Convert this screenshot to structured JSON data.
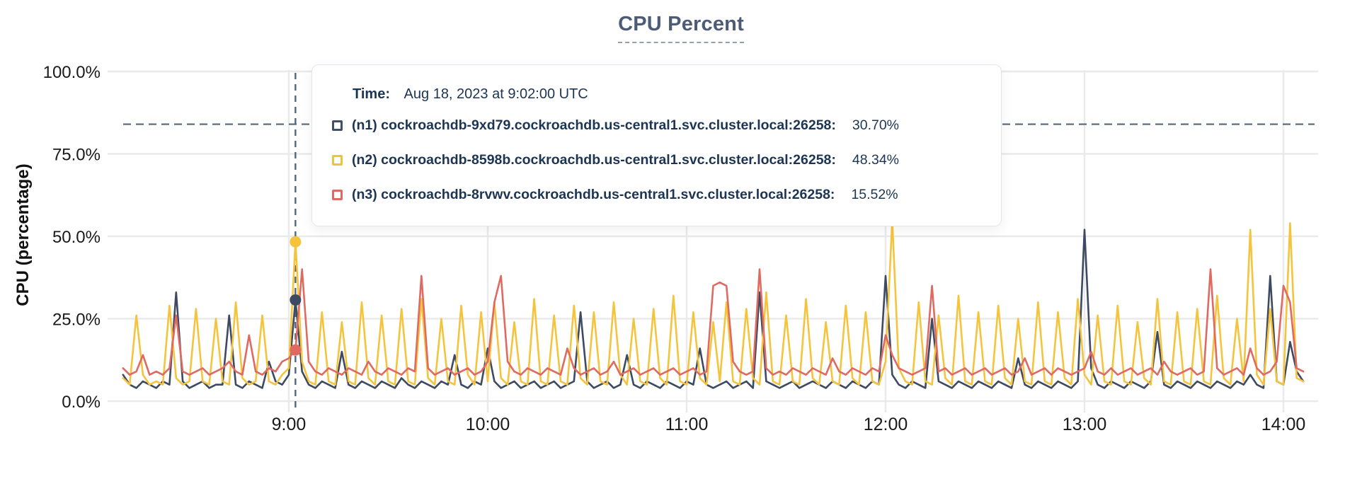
{
  "title": "CPU Percent",
  "y_axis_label": "CPU (percentage)",
  "tooltip": {
    "time_label": "Time:",
    "time_value": "Aug 18, 2023 at 9:02:00 UTC",
    "rows": [
      {
        "label": "(n1) cockroachdb-9xd79.cockroachdb.us-central1.svc.cluster.local:26258:",
        "value": "30.70%",
        "color": "#424f68"
      },
      {
        "label": "(n2) cockroachdb-8598b.cockroachdb.us-central1.svc.cluster.local:26258:",
        "value": "48.34%",
        "color": "#f0c33c"
      },
      {
        "label": "(n3) cockroachdb-8rvwv.cockroachdb.us-central1.svc.cluster.local:26258:",
        "value": "15.52%",
        "color": "#df6a62"
      }
    ]
  },
  "colors": {
    "accent_navy_text": "#1c3553",
    "title_slate": "#4d5c76",
    "gridline": "#eaeaea",
    "dashed_guides": "#51677b",
    "axis_text": "#1a1a1a",
    "series_n1": "#3d4a61",
    "series_n2": "#f5c43c",
    "series_n3": "#df6a62"
  },
  "chart_data": {
    "type": "line",
    "title": "CPU Percent",
    "xlabel": "",
    "ylabel": "CPU (percentage)",
    "ylim": [
      0,
      100
    ],
    "grid": true,
    "legend_position": "hover-tooltip",
    "y_tick_values": [
      0,
      25,
      50,
      75,
      100
    ],
    "y_tick_labels": [
      "0.0%",
      "25.0%",
      "50.0%",
      "75.0%",
      "100.0%"
    ],
    "x_tick_hours": [
      9,
      10,
      11,
      12,
      13,
      14
    ],
    "x_tick_labels": [
      "9:00",
      "10:00",
      "11:00",
      "12:00",
      "13:00",
      "14:00"
    ],
    "x_start_hour": 8.1667,
    "x_end_hour": 14.1,
    "x_minutes_per_point": 2,
    "threshold_pct": 84,
    "hover": {
      "x_hour": 9.0333,
      "time": "Aug 18, 2023 at 9:02:00 UTC",
      "values": [
        30.7,
        48.34,
        15.52
      ]
    },
    "series": [
      {
        "name": "(n1) cockroachdb-9xd79.cockroachdb.us-central1.svc.cluster.local:26258",
        "color": "#3d4a61",
        "values": [
          8,
          5,
          4,
          6,
          5,
          4,
          6,
          5,
          33,
          6,
          4,
          5,
          6,
          4,
          5,
          5,
          26,
          5,
          4,
          6,
          5,
          4,
          12,
          6,
          5,
          8,
          30.7,
          9,
          5,
          4,
          6,
          5,
          4,
          15,
          5,
          4,
          6,
          5,
          4,
          6,
          5,
          4,
          7,
          5,
          4,
          6,
          5,
          4,
          6,
          5,
          14,
          5,
          4,
          6,
          5,
          16,
          6,
          4,
          5,
          6,
          4,
          5,
          6,
          4,
          5,
          6,
          4,
          5,
          6,
          27,
          6,
          4,
          5,
          6,
          4,
          5,
          14,
          5,
          4,
          6,
          5,
          4,
          6,
          5,
          4,
          6,
          5,
          16,
          5,
          4,
          5,
          6,
          4,
          5,
          6,
          4,
          33,
          6,
          5,
          4,
          5,
          6,
          4,
          5,
          6,
          5,
          4,
          6,
          5,
          4,
          6,
          5,
          4,
          6,
          5,
          38,
          8,
          5,
          4,
          6,
          5,
          4,
          25,
          6,
          5,
          4,
          6,
          5,
          4,
          6,
          5,
          4,
          6,
          5,
          4,
          13,
          5,
          4,
          6,
          5,
          4,
          6,
          5,
          4,
          6,
          52,
          10,
          5,
          4,
          6,
          5,
          4,
          6,
          5,
          4,
          6,
          21,
          5,
          4,
          6,
          5,
          4,
          6,
          5,
          4,
          6,
          5,
          4,
          6,
          5,
          8,
          5,
          4,
          38,
          6,
          5,
          18,
          9,
          6
        ]
      },
      {
        "name": "(n2) cockroachdb-8598b.cockroachdb.us-central1.svc.cluster.local:26258",
        "color": "#f5c43c",
        "values": [
          7,
          5,
          26,
          8,
          5,
          6,
          5,
          29,
          7,
          5,
          6,
          28,
          6,
          5,
          25,
          6,
          5,
          30,
          7,
          5,
          6,
          26,
          6,
          5,
          8,
          10,
          48.34,
          12,
          6,
          5,
          27,
          6,
          5,
          24,
          6,
          5,
          30,
          7,
          5,
          26,
          6,
          5,
          28,
          6,
          5,
          31,
          7,
          5,
          25,
          6,
          5,
          29,
          8,
          5,
          27,
          6,
          30,
          7,
          5,
          24,
          6,
          5,
          31,
          6,
          5,
          26,
          6,
          5,
          29,
          7,
          5,
          27,
          6,
          5,
          30,
          8,
          5,
          25,
          6,
          5,
          28,
          7,
          5,
          32,
          6,
          5,
          27,
          7,
          5,
          24,
          6,
          30,
          6,
          5,
          28,
          7,
          5,
          33,
          6,
          5,
          26,
          6,
          5,
          31,
          7,
          5,
          24,
          6,
          5,
          29,
          7,
          5,
          27,
          6,
          5,
          12,
          55,
          10,
          6,
          5,
          30,
          6,
          5,
          26,
          7,
          5,
          32,
          6,
          5,
          27,
          6,
          5,
          29,
          7,
          5,
          25,
          6,
          5,
          30,
          6,
          5,
          27,
          7,
          5,
          31,
          8,
          5,
          26,
          6,
          5,
          29,
          6,
          5,
          24,
          7,
          5,
          31,
          6,
          5,
          27,
          6,
          5,
          28,
          6,
          5,
          32,
          7,
          5,
          25,
          6,
          52,
          8,
          5,
          28,
          6,
          5,
          54,
          7,
          6
        ]
      },
      {
        "name": "(n3) cockroachdb-8rvwv.cockroachdb.us-central1.svc.cluster.local:26258",
        "color": "#df6a62",
        "values": [
          10,
          8,
          9,
          14,
          8,
          9,
          8,
          10,
          26,
          9,
          8,
          9,
          10,
          8,
          9,
          10,
          12,
          9,
          8,
          20,
          9,
          8,
          10,
          9,
          12,
          13,
          15.52,
          40,
          12,
          9,
          8,
          10,
          9,
          8,
          10,
          9,
          8,
          12,
          9,
          8,
          10,
          9,
          8,
          10,
          9,
          38,
          10,
          8,
          9,
          10,
          8,
          9,
          10,
          8,
          9,
          12,
          30,
          38,
          12,
          9,
          8,
          10,
          9,
          8,
          10,
          9,
          8,
          16,
          10,
          8,
          9,
          10,
          8,
          9,
          12,
          8,
          9,
          10,
          8,
          9,
          10,
          8,
          9,
          10,
          8,
          9,
          10,
          8,
          9,
          35,
          36,
          35,
          12,
          9,
          8,
          9,
          40,
          10,
          8,
          9,
          8,
          10,
          9,
          8,
          10,
          9,
          8,
          13,
          9,
          8,
          10,
          9,
          8,
          10,
          9,
          20,
          14,
          10,
          9,
          8,
          9,
          10,
          35,
          9,
          10,
          8,
          9,
          10,
          8,
          9,
          10,
          8,
          9,
          10,
          8,
          9,
          13,
          8,
          9,
          10,
          8,
          10,
          9,
          8,
          9,
          10,
          15,
          9,
          8,
          10,
          8,
          9,
          10,
          8,
          9,
          10,
          8,
          12,
          9,
          8,
          9,
          10,
          8,
          9,
          40,
          10,
          8,
          9,
          10,
          8,
          16,
          10,
          8,
          9,
          12,
          35,
          30,
          10,
          9
        ]
      }
    ]
  }
}
